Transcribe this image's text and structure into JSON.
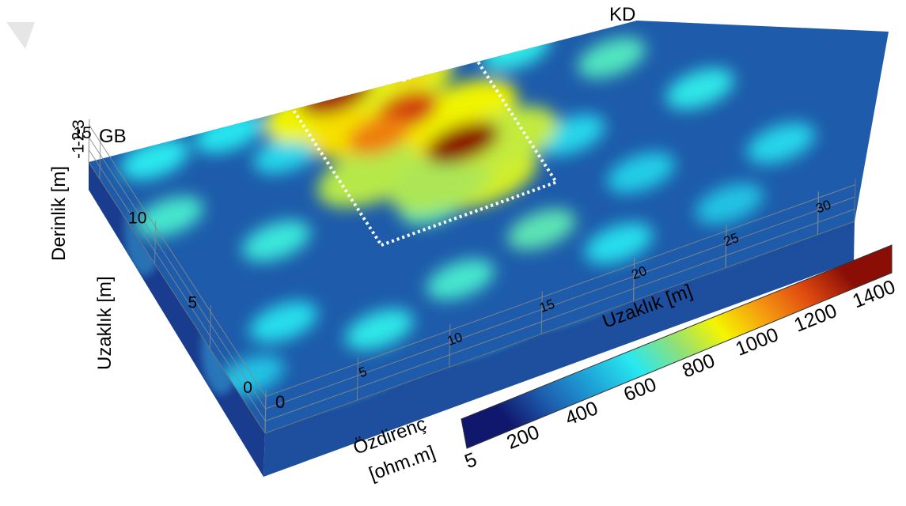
{
  "chart_data": {
    "type": "heatmap",
    "title": "",
    "corner_labels": {
      "left": "GB",
      "right": "KD"
    },
    "x_axis": {
      "label": "Uzaklık [m]",
      "ticks": [
        0,
        5,
        10,
        15,
        20,
        25,
        30
      ],
      "range": [
        0,
        32
      ]
    },
    "y_axis": {
      "label": "Uzaklık [m]",
      "ticks": [
        0,
        5,
        10,
        15
      ],
      "range": [
        0,
        16
      ]
    },
    "z_axis": {
      "label": "Derinlik [m]",
      "ticks": [
        -1,
        -2,
        -3
      ],
      "range": [
        -3.5,
        0
      ]
    },
    "colorbar": {
      "label_line1": "Özdirenç",
      "label_line2": "[ohm.m]",
      "ticks": [
        5,
        200,
        400,
        600,
        800,
        1000,
        1200,
        1400
      ],
      "range": [
        5,
        1450
      ],
      "colors": [
        "#10186e",
        "#1e5fb0",
        "#1ea3d8",
        "#28e8f0",
        "#8ee07a",
        "#f5f500",
        "#f59a10",
        "#e04a10",
        "#8a0e06"
      ]
    },
    "annotations": [
      {
        "name": "main-anomaly-box",
        "style": "white dotted",
        "x_range": [
          10.5,
          20
        ],
        "y_range": [
          7,
          16
        ]
      },
      {
        "name": "small-anomaly-box",
        "style": "white dotted",
        "x_range": [
          16.2,
          18.2
        ],
        "y_range": [
          14.5,
          16
        ]
      }
    ],
    "anomalies": [
      {
        "x": 17,
        "y": 10.5,
        "resistivity": 1450
      },
      {
        "x": 12.8,
        "y": 15,
        "resistivity": 1400
      },
      {
        "x": 15.5,
        "y": 13,
        "resistivity": 1300
      },
      {
        "x": 13.5,
        "y": 12.3,
        "resistivity": 1150
      },
      {
        "x": 17.2,
        "y": 15.3,
        "resistivity": 1000
      }
    ]
  }
}
